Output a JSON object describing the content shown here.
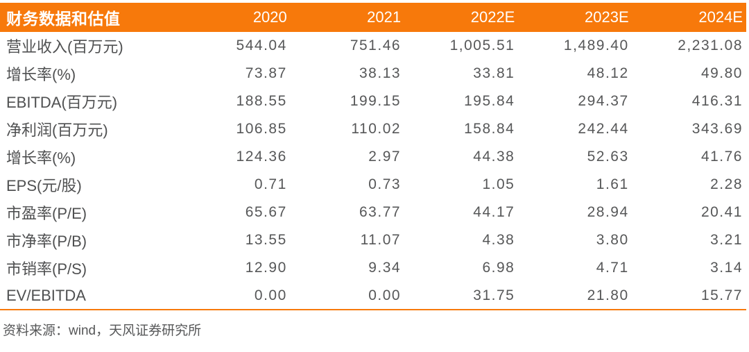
{
  "colors": {
    "accent_orange": "#F7790B",
    "body_text": "#565758",
    "header_text": "#FFFFFF"
  },
  "table": {
    "title": "财务数据和估值",
    "columns": [
      "2020",
      "2021",
      "2022E",
      "2023E",
      "2024E"
    ],
    "rows": [
      {
        "label": "营业收入(百万元)",
        "values": [
          "544.04",
          "751.46",
          "1,005.51",
          "1,489.40",
          "2,231.08"
        ]
      },
      {
        "label": "增长率(%)",
        "values": [
          "73.87",
          "38.13",
          "33.81",
          "48.12",
          "49.80"
        ]
      },
      {
        "label": "EBITDA(百万元)",
        "values": [
          "188.55",
          "199.15",
          "195.84",
          "294.37",
          "416.31"
        ]
      },
      {
        "label": "净利润(百万元)",
        "values": [
          "106.85",
          "110.02",
          "158.84",
          "242.44",
          "343.69"
        ]
      },
      {
        "label": "增长率(%)",
        "values": [
          "124.36",
          "2.97",
          "44.38",
          "52.63",
          "41.76"
        ]
      },
      {
        "label": "EPS(元/股)",
        "values": [
          "0.71",
          "0.73",
          "1.05",
          "1.61",
          "2.28"
        ]
      },
      {
        "label": "市盈率(P/E)",
        "values": [
          "65.67",
          "63.77",
          "44.17",
          "28.94",
          "20.41"
        ]
      },
      {
        "label": "市净率(P/B)",
        "values": [
          "13.55",
          "11.07",
          "4.38",
          "3.80",
          "3.21"
        ]
      },
      {
        "label": "市销率(P/S)",
        "values": [
          "12.90",
          "9.34",
          "6.98",
          "4.71",
          "3.14"
        ]
      },
      {
        "label": "EV/EBITDA",
        "values": [
          "0.00",
          "0.00",
          "31.75",
          "21.80",
          "15.77"
        ]
      }
    ]
  },
  "footer": {
    "source_note": "资料来源：wind，天风证券研究所"
  }
}
